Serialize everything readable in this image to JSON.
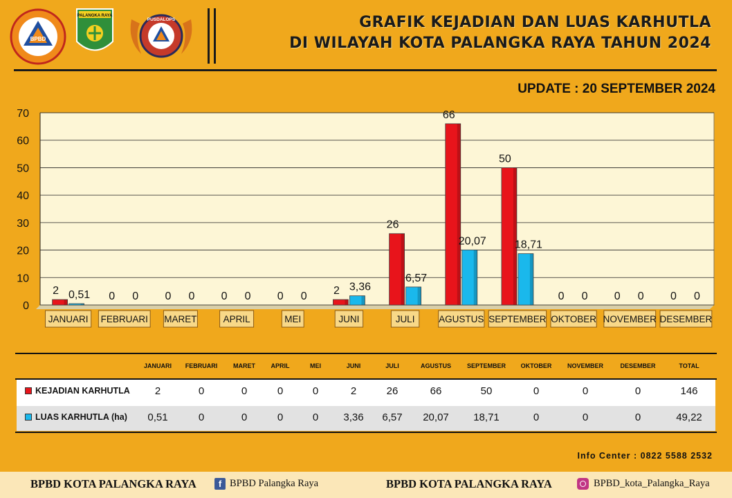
{
  "header": {
    "title_line1": "GRAFIK KEJADIAN DAN LUAS KARHUTLA",
    "title_line2": "DI WILAYAH KOTA PALANGKA RAYA TAHUN 2024",
    "update": "UPDATE : 20 SEPTEMBER 2024",
    "logo1_text": "BPBD",
    "logo2_text": "PALANGKA RAYA",
    "logo3_text": "PUSDALOPS"
  },
  "colors": {
    "background": "#f0a81c",
    "kejadian": "#e8141b",
    "luas": "#1ab8ec",
    "plot_bg": "#fdf6d6"
  },
  "chart_data": {
    "type": "bar",
    "categories": [
      "JANUARI",
      "FEBRUARI",
      "MARET",
      "APRIL",
      "MEI",
      "JUNI",
      "JULI",
      "AGUSTUS",
      "SEPTEMBER",
      "OKTOBER",
      "NOVEMBER",
      "DESEMBER"
    ],
    "series": [
      {
        "name": "KEJADIAN KARHUTLA",
        "values": [
          2,
          0,
          0,
          0,
          0,
          2,
          26,
          66,
          50,
          0,
          0,
          0
        ],
        "labels": [
          "2",
          "0",
          "0",
          "0",
          "0",
          "2",
          "26",
          "66",
          "50",
          "0",
          "0",
          "0"
        ]
      },
      {
        "name": "LUAS KARHUTLA (ha)",
        "values": [
          0.51,
          0,
          0,
          0,
          0,
          3.36,
          6.57,
          20.07,
          18.71,
          0,
          0,
          0
        ],
        "labels": [
          "0,51",
          "0",
          "0",
          "0",
          "0",
          "3,36",
          "6,57",
          "20,07",
          "18,71",
          "0",
          "0",
          "0"
        ]
      }
    ],
    "ylim": [
      0,
      70
    ],
    "yticks": [
      0,
      10,
      20,
      30,
      40,
      50,
      60,
      70
    ],
    "grid": true,
    "legend": "none"
  },
  "table": {
    "headers": [
      "JANUARI",
      "FEBRUARI",
      "MARET",
      "APRIL",
      "MEI",
      "JUNI",
      "JULI",
      "AGUSTUS",
      "SEPTEMBER",
      "OKTOBER",
      "NOVEMBER",
      "DESEMBER",
      "TOTAL"
    ],
    "rows": [
      {
        "label": "KEJADIAN KARHUTLA",
        "values": [
          "2",
          "0",
          "0",
          "0",
          "0",
          "2",
          "26",
          "66",
          "50",
          "0",
          "0",
          "0",
          "146"
        ]
      },
      {
        "label": "LUAS KARHUTLA (ha)",
        "values": [
          "0,51",
          "0",
          "0",
          "0",
          "0",
          "3,36",
          "6,57",
          "20,07",
          "18,71",
          "0",
          "0",
          "0",
          "49,22"
        ]
      }
    ]
  },
  "info_center": "Info Center : 0822 5588 2532",
  "footer": {
    "left_bold": "BPBD KOTA PALANGKA RAYA",
    "facebook": "BPBD Palangka Raya",
    "mid_bold": "BPBD KOTA PALANGKA RAYA",
    "instagram": "BPBD_kota_Palangka_Raya"
  }
}
